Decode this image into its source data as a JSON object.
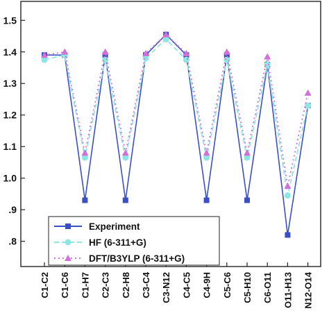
{
  "chart_data": {
    "type": "line",
    "categories": [
      "C1-C2",
      "C1-C6",
      "C1-H7",
      "C2-C3",
      "C2-H8",
      "C3-C4",
      "C3-N12",
      "C4-C5",
      "C4-9H",
      "C5-C6",
      "C5-H10",
      "C6-O11",
      "O11-H13",
      "N12-O14"
    ],
    "ylim": [
      0.72,
      1.56
    ],
    "yticks": [
      0.8,
      0.9,
      1.0,
      1.1,
      1.2,
      1.3,
      1.4,
      1.5
    ],
    "ytick_labels": [
      ".8",
      ".9",
      "1.0",
      "1.1",
      "1.2",
      "1.3",
      "1.4",
      "1.5"
    ],
    "grid": false,
    "legend_position": "bottom-left",
    "series": [
      {
        "name": "Experiment",
        "color": "#3b4fc4",
        "style": "solid",
        "marker": "square",
        "values": [
          1.39,
          1.39,
          0.93,
          1.39,
          0.93,
          1.39,
          1.455,
          1.39,
          0.93,
          1.39,
          0.93,
          1.36,
          0.82,
          1.23
        ]
      },
      {
        "name": "HF (6-311+G)",
        "color": "#8ee6e3",
        "style": "dashed",
        "marker": "circle",
        "values": [
          1.375,
          1.39,
          1.065,
          1.375,
          1.065,
          1.38,
          1.44,
          1.375,
          1.065,
          1.375,
          1.065,
          1.36,
          0.945,
          1.23
        ]
      },
      {
        "name": "DFT/B3YLP (6-311+G)",
        "color": "#d070d8",
        "style": "dotted",
        "marker": "triangle",
        "values": [
          1.39,
          1.4,
          1.08,
          1.4,
          1.08,
          1.395,
          1.455,
          1.395,
          1.08,
          1.4,
          1.08,
          1.385,
          0.975,
          1.27
        ]
      }
    ]
  }
}
